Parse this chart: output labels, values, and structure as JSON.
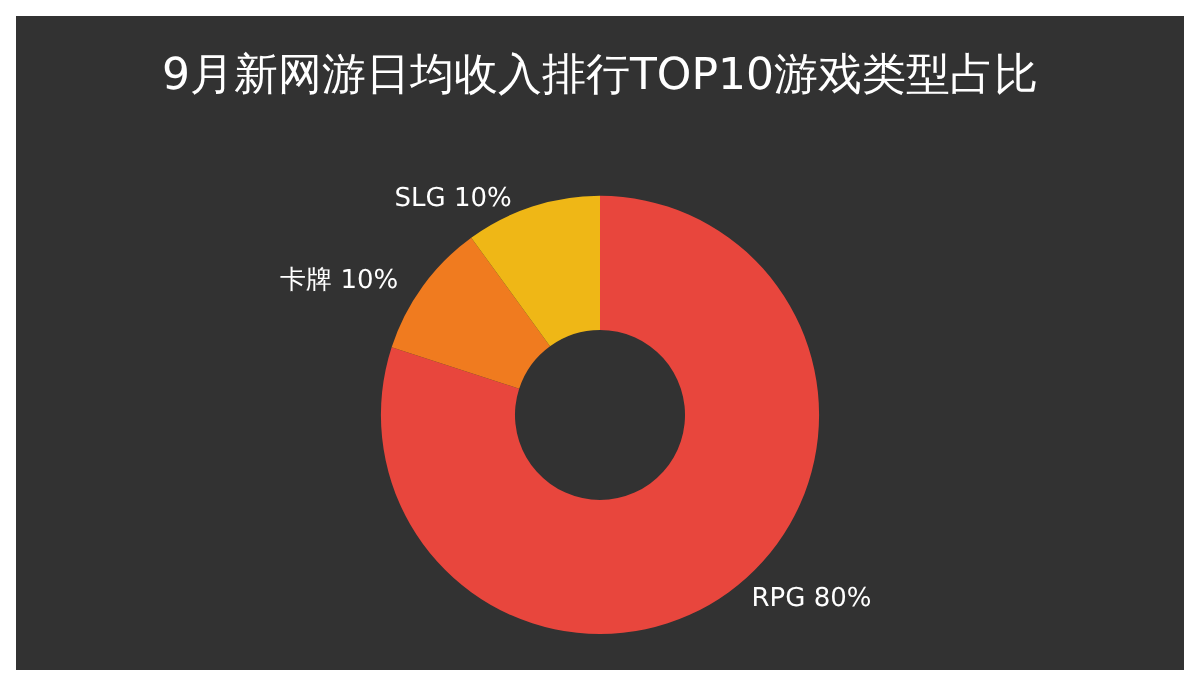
{
  "chart_data": {
    "type": "donut",
    "title": "9月新网游日均收入排行TOP10游戏类型占比",
    "categories": [
      "RPG",
      "卡牌",
      "SLG"
    ],
    "values": [
      80,
      10,
      10
    ],
    "value_labels": [
      "80%",
      "10%",
      "10%"
    ],
    "colors": [
      "#e8463d",
      "#f07b1f",
      "#efb716"
    ],
    "legend": false
  }
}
